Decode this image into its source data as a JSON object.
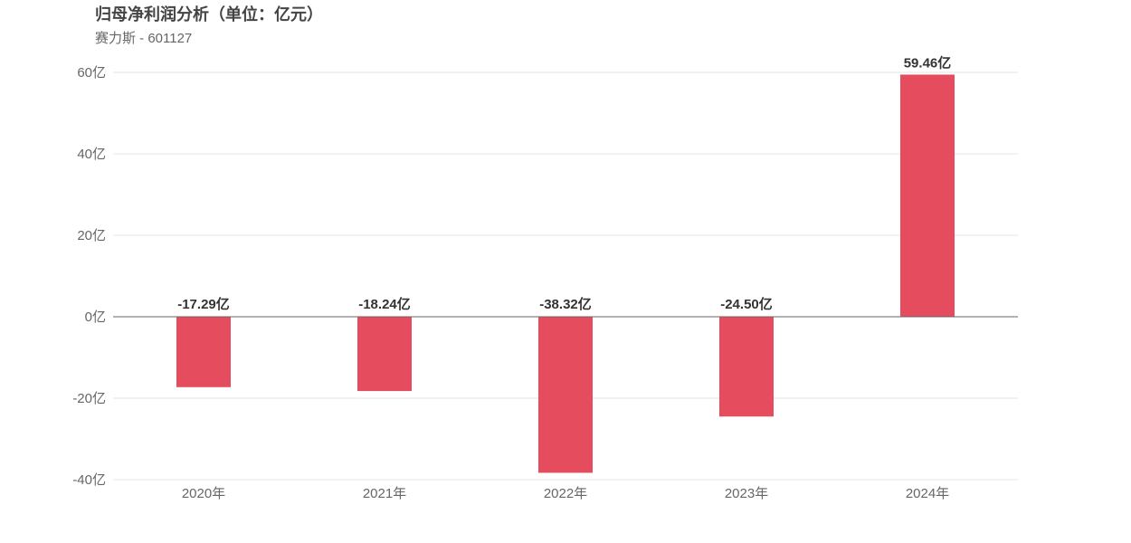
{
  "chart_data": {
    "type": "bar",
    "title": "归母净利润分析（单位：亿元）",
    "subtitle": "赛力斯 - 601127",
    "categories": [
      "2020年",
      "2021年",
      "2022年",
      "2023年",
      "2024年"
    ],
    "values": [
      -17.29,
      -18.24,
      -38.32,
      -24.5,
      59.46
    ],
    "value_labels": [
      "-17.29亿",
      "-18.24亿",
      "-38.32亿",
      "-24.50亿",
      "59.46亿"
    ],
    "y_ticks": [
      60,
      40,
      20,
      0,
      -20,
      -40
    ],
    "y_tick_labels": [
      "60亿",
      "40亿",
      "20亿",
      "0亿",
      "-20亿",
      "-40亿"
    ],
    "ylim": [
      -40,
      60
    ],
    "xlabel": "",
    "ylabel": "",
    "grid": true,
    "legend": "none",
    "bar_color": "#e54d5f"
  }
}
